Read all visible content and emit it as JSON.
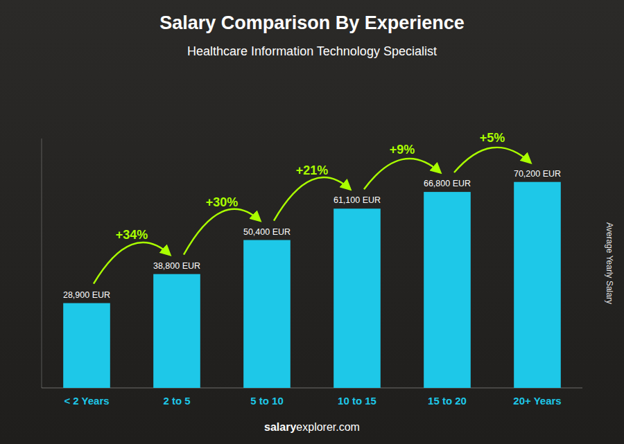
{
  "chart_data": {
    "type": "bar",
    "title": "Salary Comparison By Experience",
    "subtitle": "Healthcare Information Technology Specialist",
    "y_label": "Average Yearly Salary",
    "categories": [
      "< 2 Years",
      "2 to 5",
      "5 to 10",
      "10 to 15",
      "15 to 20",
      "20+ Years"
    ],
    "values": [
      28900,
      38800,
      50400,
      61100,
      66800,
      70200
    ],
    "value_labels": [
      "28,900 EUR",
      "38,800 EUR",
      "50,400 EUR",
      "61,100 EUR",
      "66,800 EUR",
      "70,200 EUR"
    ],
    "data_labels": true,
    "color": "#1EC8E8",
    "ylim": [
      0,
      85000
    ],
    "tick_labels": "x",
    "grid": false,
    "annotations": [
      {
        "text": "+34%",
        "color": "#AAFF00"
      },
      {
        "text": "+30%",
        "color": "#AAFF00"
      },
      {
        "text": "+21%",
        "color": "#AAFF00"
      },
      {
        "text": "+9%",
        "color": "#AAFF00"
      },
      {
        "text": "+5%",
        "color": "#AAFF00"
      }
    ],
    "watermark": [
      "salary",
      "explorer.com"
    ]
  }
}
